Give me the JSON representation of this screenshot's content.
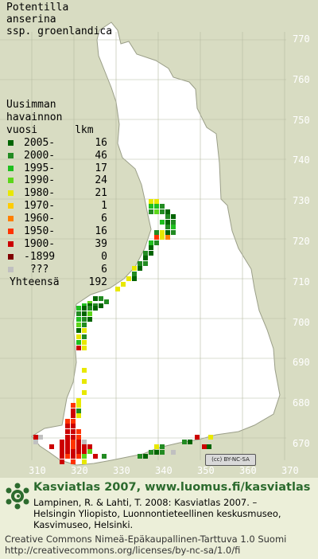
{
  "map": {
    "species": [
      "Potentilla",
      "anserina",
      "ssp. groenlandica"
    ],
    "y_ticks": [
      "770",
      "760",
      "750",
      "740",
      "730",
      "720",
      "710",
      "700",
      "690",
      "680",
      "670"
    ],
    "x_ticks": [
      "310",
      "320",
      "330",
      "340",
      "350",
      "360",
      "370"
    ],
    "cc_badge": "BY-NC-SA",
    "colors": {
      "land": "#ffffff",
      "water": "#d8dcc2",
      "grid": "#b5b9a2"
    }
  },
  "legend": {
    "heading": [
      "Uusimman",
      "havainnon",
      "vuosi      lkm"
    ],
    "rows": [
      {
        "label": "2005-",
        "count": "16",
        "color": "#006400"
      },
      {
        "label": "2000-",
        "count": "46",
        "color": "#228b22"
      },
      {
        "label": "1995-",
        "count": "17",
        "color": "#1fbf1f"
      },
      {
        "label": "1990-",
        "count": "24",
        "color": "#5cd61a"
      },
      {
        "label": "1980-",
        "count": "21",
        "color": "#e8e800"
      },
      {
        "label": "1970-",
        "count": "1",
        "color": "#ffcc00"
      },
      {
        "label": "1960-",
        "count": "6",
        "color": "#ff7f00"
      },
      {
        "label": "1950-",
        "count": "16",
        "color": "#ff3300"
      },
      {
        "label": "1900-",
        "count": "39",
        "color": "#cc0000"
      },
      {
        "label": "-1899",
        "count": "0",
        "color": "#800000"
      },
      {
        "label": " ???",
        "count": "6",
        "color": "#c0c0c0"
      }
    ],
    "total_label": "Yhteensä",
    "total_count": "192"
  },
  "footer": {
    "title": "Kasviatlas 2007, www.luomus.fi/kasviatlas",
    "citation": [
      "Lampinen, R. & Lahti, T. 2008: Kasviatlas 2007. –",
      "Helsingin Yliopisto, Luonnontieteellinen keskusmuseo,",
      "Kasvimuseo, Helsinki."
    ],
    "license": [
      "Creative Commons Nimeä-Epäkaupallinen-Tarttuva 1.0 Suomi",
      "http://creativecommons.org/licenses/by-nc-sa/1.0/fi"
    ]
  },
  "observations": [
    [
      187,
      250,
      4
    ],
    [
      194,
      250,
      4
    ],
    [
      187,
      256,
      2
    ],
    [
      194,
      256,
      2
    ],
    [
      201,
      256,
      1
    ],
    [
      187,
      263,
      1
    ],
    [
      194,
      263,
      3
    ],
    [
      201,
      263,
      1
    ],
    [
      208,
      263,
      0
    ],
    [
      208,
      269,
      1
    ],
    [
      215,
      269,
      0
    ],
    [
      208,
      276,
      0
    ],
    [
      215,
      276,
      1
    ],
    [
      201,
      276,
      2
    ],
    [
      208,
      282,
      1
    ],
    [
      215,
      282,
      2
    ],
    [
      208,
      289,
      0
    ],
    [
      215,
      289,
      1
    ],
    [
      201,
      289,
      4
    ],
    [
      194,
      289,
      1
    ],
    [
      201,
      295,
      4
    ],
    [
      208,
      295,
      6
    ],
    [
      194,
      295,
      7
    ],
    [
      187,
      302,
      2
    ],
    [
      194,
      302,
      1
    ],
    [
      187,
      308,
      0
    ],
    [
      180,
      315,
      1
    ],
    [
      187,
      315,
      0
    ],
    [
      180,
      321,
      0
    ],
    [
      173,
      328,
      1
    ],
    [
      180,
      328,
      1
    ],
    [
      166,
      334,
      4
    ],
    [
      173,
      334,
      0
    ],
    [
      166,
      341,
      1
    ],
    [
      159,
      347,
      4
    ],
    [
      166,
      347,
      0
    ],
    [
      152,
      354,
      4
    ],
    [
      145,
      360,
      4
    ],
    [
      117,
      372,
      0
    ],
    [
      124,
      372,
      1
    ],
    [
      131,
      376,
      1
    ],
    [
      110,
      378,
      3
    ],
    [
      103,
      381,
      2
    ],
    [
      110,
      381,
      0
    ],
    [
      117,
      381,
      1
    ],
    [
      124,
      381,
      0
    ],
    [
      96,
      384,
      2
    ],
    [
      103,
      384,
      0
    ],
    [
      110,
      384,
      1
    ],
    [
      117,
      384,
      0
    ],
    [
      96,
      391,
      1
    ],
    [
      103,
      391,
      0
    ],
    [
      110,
      391,
      3
    ],
    [
      96,
      398,
      2
    ],
    [
      103,
      398,
      1
    ],
    [
      110,
      398,
      0
    ],
    [
      96,
      405,
      3
    ],
    [
      103,
      405,
      1
    ],
    [
      96,
      412,
      0
    ],
    [
      103,
      412,
      4
    ],
    [
      96,
      420,
      4
    ],
    [
      103,
      420,
      1
    ],
    [
      96,
      427,
      2
    ],
    [
      103,
      427,
      4
    ],
    [
      96,
      434,
      8
    ],
    [
      103,
      434,
      4
    ],
    [
      103,
      462,
      4
    ],
    [
      103,
      476,
      4
    ],
    [
      103,
      490,
      4
    ],
    [
      96,
      500,
      4
    ],
    [
      89,
      506,
      7
    ],
    [
      96,
      506,
      4
    ],
    [
      89,
      513,
      8
    ],
    [
      96,
      513,
      1
    ],
    [
      89,
      519,
      8
    ],
    [
      96,
      519,
      4
    ],
    [
      82,
      526,
      7
    ],
    [
      89,
      526,
      7
    ],
    [
      82,
      532,
      8
    ],
    [
      89,
      532,
      8
    ],
    [
      82,
      539,
      8
    ],
    [
      89,
      539,
      8
    ],
    [
      96,
      539,
      7
    ],
    [
      42,
      546,
      8
    ],
    [
      48,
      546,
      10
    ],
    [
      82,
      546,
      8
    ],
    [
      89,
      546,
      8
    ],
    [
      96,
      546,
      7
    ],
    [
      42,
      552,
      10
    ],
    [
      75,
      552,
      8
    ],
    [
      82,
      552,
      8
    ],
    [
      89,
      552,
      7
    ],
    [
      96,
      552,
      8
    ],
    [
      103,
      552,
      10
    ],
    [
      62,
      558,
      8
    ],
    [
      75,
      558,
      8
    ],
    [
      82,
      558,
      8
    ],
    [
      89,
      558,
      7
    ],
    [
      96,
      558,
      8
    ],
    [
      103,
      558,
      8
    ],
    [
      110,
      558,
      8
    ],
    [
      75,
      564,
      8
    ],
    [
      82,
      564,
      8
    ],
    [
      89,
      564,
      8
    ],
    [
      96,
      564,
      8
    ],
    [
      103,
      564,
      8
    ],
    [
      110,
      564,
      3
    ],
    [
      75,
      570,
      8
    ],
    [
      82,
      570,
      7
    ],
    [
      89,
      570,
      8
    ],
    [
      96,
      570,
      7
    ],
    [
      103,
      570,
      3
    ],
    [
      117,
      570,
      8
    ],
    [
      75,
      577,
      8
    ],
    [
      89,
      577,
      7
    ],
    [
      103,
      577,
      4
    ],
    [
      128,
      570,
      1
    ],
    [
      173,
      570,
      1
    ],
    [
      180,
      570,
      0
    ],
    [
      187,
      565,
      1
    ],
    [
      194,
      565,
      0
    ],
    [
      201,
      565,
      1
    ],
    [
      194,
      558,
      4
    ],
    [
      229,
      552,
      1
    ],
    [
      236,
      552,
      0
    ],
    [
      201,
      558,
      1
    ],
    [
      215,
      565,
      10
    ],
    [
      245,
      546,
      8
    ],
    [
      262,
      546,
      4
    ],
    [
      254,
      558,
      8
    ],
    [
      260,
      558,
      0
    ]
  ]
}
